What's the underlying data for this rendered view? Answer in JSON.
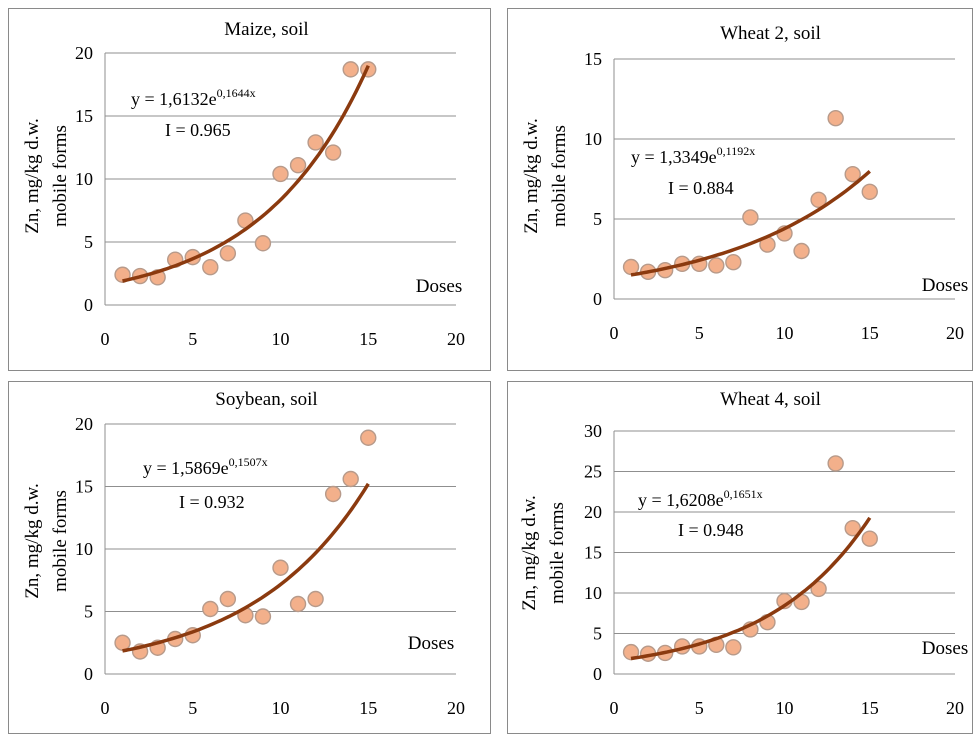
{
  "colors": {
    "point_fill": "#f3b08b",
    "point_stroke": "#b79a8a",
    "trendline": "#8b3a0f",
    "gridline": "#8f8f8f"
  },
  "chart_data": [
    {
      "type": "scatter",
      "title": "Maize, soil",
      "ylabel_lines": [
        "Zn, mg/kg d.w.",
        "mobile forms"
      ],
      "xlabel": "Doses",
      "xlim": [
        0,
        20
      ],
      "ylim": [
        0,
        20
      ],
      "xticks": [
        0,
        5,
        10,
        15,
        20
      ],
      "yticks": [
        0,
        5,
        10,
        15,
        20
      ],
      "grid": "horizontal",
      "series": [
        {
          "x": [
            1,
            2,
            3,
            4,
            5,
            6,
            7,
            8,
            9,
            10,
            11,
            12,
            13,
            14,
            15
          ],
          "y": [
            2.4,
            2.3,
            2.2,
            3.6,
            3.8,
            3.0,
            4.1,
            6.7,
            4.9,
            10.4,
            11.1,
            12.9,
            12.1,
            18.7,
            18.7
          ]
        }
      ],
      "trendline": {
        "type": "exponential",
        "a": 1.6132,
        "b": 0.1644,
        "x_range": [
          1,
          15
        ],
        "equation_base": "y = 1,6132e",
        "equation_exp": "0,1644x",
        "r_label": "I = 0.965"
      }
    },
    {
      "type": "scatter",
      "title": "Wheat 2, soil",
      "ylabel_lines": [
        "Zn, mg/kg d.w.",
        "mobile forms"
      ],
      "xlabel": "Doses",
      "xlim": [
        0,
        20
      ],
      "ylim": [
        0,
        15
      ],
      "xticks": [
        0,
        5,
        10,
        15,
        20
      ],
      "yticks": [
        0,
        5,
        10,
        15
      ],
      "grid": "horizontal",
      "series": [
        {
          "x": [
            1,
            2,
            3,
            4,
            5,
            6,
            7,
            8,
            9,
            10,
            11,
            12,
            13,
            14,
            15
          ],
          "y": [
            2.0,
            1.7,
            1.8,
            2.2,
            2.2,
            2.1,
            2.3,
            5.1,
            3.4,
            4.1,
            3.0,
            6.2,
            11.3,
            7.8,
            6.7
          ]
        }
      ],
      "trendline": {
        "type": "exponential",
        "a": 1.3349,
        "b": 0.1192,
        "x_range": [
          1,
          15
        ],
        "equation_base": "y = 1,3349e",
        "equation_exp": "0,1192x",
        "r_label": "I = 0.884"
      }
    },
    {
      "type": "scatter",
      "title": "Soybean, soil",
      "ylabel_lines": [
        "Zn, mg/kg d.w.",
        "mobile forms"
      ],
      "xlabel": "Doses",
      "xlim": [
        0,
        20
      ],
      "ylim": [
        0,
        20
      ],
      "xticks": [
        0,
        5,
        10,
        15,
        20
      ],
      "yticks": [
        0,
        5,
        10,
        15,
        20
      ],
      "grid": "horizontal",
      "series": [
        {
          "x": [
            1,
            2,
            3,
            4,
            5,
            6,
            7,
            8,
            9,
            10,
            11,
            12,
            13,
            14,
            15
          ],
          "y": [
            2.5,
            1.8,
            2.1,
            2.8,
            3.1,
            5.2,
            6.0,
            4.7,
            4.6,
            8.5,
            5.6,
            6.0,
            14.4,
            15.6,
            18.9
          ]
        }
      ],
      "trendline": {
        "type": "exponential",
        "a": 1.5869,
        "b": 0.1507,
        "x_range": [
          1,
          15
        ],
        "equation_base": "y = 1,5869e",
        "equation_exp": "0,1507x",
        "r_label": "I = 0.932"
      }
    },
    {
      "type": "scatter",
      "title": "Wheat 4, soil",
      "ylabel_lines": [
        "Zn, mg/kg d.w.",
        "mobile forms"
      ],
      "xlabel": "Doses",
      "xlim": [
        0,
        20
      ],
      "ylim": [
        0,
        30
      ],
      "xticks": [
        0,
        5,
        10,
        15,
        20
      ],
      "yticks": [
        0,
        5,
        10,
        15,
        20,
        25,
        30
      ],
      "grid": "horizontal",
      "series": [
        {
          "x": [
            1,
            2,
            3,
            4,
            5,
            6,
            7,
            8,
            9,
            10,
            11,
            12,
            13,
            14,
            15
          ],
          "y": [
            2.7,
            2.5,
            2.6,
            3.4,
            3.4,
            3.6,
            3.3,
            5.5,
            6.4,
            9.0,
            8.9,
            10.5,
            26.0,
            18.0,
            16.7
          ]
        }
      ],
      "trendline": {
        "type": "exponential",
        "a": 1.6208,
        "b": 0.1651,
        "x_range": [
          1,
          15
        ],
        "equation_base": "y = 1,6208e",
        "equation_exp": "0,1651x",
        "r_label": "I = 0.948"
      }
    }
  ]
}
